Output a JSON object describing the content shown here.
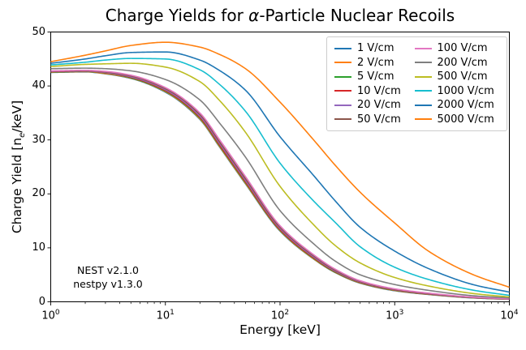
{
  "title": {
    "prefix": "Charge Yields for ",
    "alpha": "α",
    "suffix": "-Particle Nuclear Recoils"
  },
  "xlabel": "Energy [keV]",
  "ylabel": {
    "prefix": "Charge Yield [n",
    "sub": "e",
    "suffix": "/keV]"
  },
  "annotation": {
    "line1": "NEST v2.1.0",
    "line2": "nestpy v1.3.0"
  },
  "axes": {
    "xscale": "log",
    "xlim": [
      1,
      10000
    ],
    "ylim": [
      0,
      50
    ],
    "xticks": [
      {
        "base": "10",
        "exp": "0",
        "value": 1
      },
      {
        "base": "10",
        "exp": "1",
        "value": 10
      },
      {
        "base": "10",
        "exp": "2",
        "value": 100
      },
      {
        "base": "10",
        "exp": "3",
        "value": 1000
      },
      {
        "base": "10",
        "exp": "4",
        "value": 10000
      }
    ],
    "yticks": [
      {
        "label": "0",
        "value": 0
      },
      {
        "label": "10",
        "value": 10
      },
      {
        "label": "20",
        "value": 20
      },
      {
        "label": "30",
        "value": 30
      },
      {
        "label": "40",
        "value": 40
      },
      {
        "label": "50",
        "value": 50
      }
    ]
  },
  "chart_data": {
    "type": "line",
    "title": "Charge Yields for α-Particle Nuclear Recoils",
    "xlabel": "Energy [keV]",
    "ylabel": "Charge Yield [n_e/keV]",
    "xscale": "log",
    "xlim": [
      1,
      10000
    ],
    "ylim": [
      0,
      50
    ],
    "grid": false,
    "legend_position": "upper right",
    "legend_columns": 2,
    "annotations": [
      "NEST v2.1.0",
      "nestpy v1.3.0"
    ],
    "x": [
      1,
      2,
      3,
      5,
      10,
      20,
      30,
      50,
      100,
      200,
      300,
      500,
      1000,
      2000,
      5000,
      10000
    ],
    "series": [
      {
        "name": "1 V/cm",
        "color": "#1f77b4",
        "values": [
          42.5,
          42.6,
          42.25,
          41.4,
          38.85,
          33.8,
          28.55,
          21.85,
          13.1,
          7.8,
          5.45,
          3.45,
          2.05,
          1.34,
          0.7,
          0.46
        ]
      },
      {
        "name": "2 V/cm",
        "color": "#ff7f0e",
        "values": [
          42.55,
          42.65,
          42.3,
          41.45,
          38.95,
          33.9,
          28.65,
          21.95,
          13.2,
          7.85,
          5.5,
          3.5,
          2.1,
          1.37,
          0.72,
          0.47
        ]
      },
      {
        "name": "5 V/cm",
        "color": "#2ca02c",
        "values": [
          42.6,
          42.7,
          42.4,
          41.5,
          39.05,
          34.05,
          28.8,
          22.1,
          13.3,
          7.95,
          5.55,
          3.56,
          2.15,
          1.4,
          0.74,
          0.49
        ]
      },
      {
        "name": "10 V/cm",
        "color": "#d62728",
        "values": [
          42.65,
          42.75,
          42.45,
          41.6,
          39.15,
          34.2,
          28.95,
          22.25,
          13.4,
          8.05,
          5.65,
          3.62,
          2.2,
          1.43,
          0.76,
          0.5
        ]
      },
      {
        "name": "20 V/cm",
        "color": "#9467bd",
        "values": [
          42.7,
          42.8,
          42.5,
          41.7,
          39.3,
          34.4,
          29.2,
          22.5,
          13.6,
          8.2,
          5.75,
          3.7,
          2.25,
          1.47,
          0.78,
          0.51
        ]
      },
      {
        "name": "50 V/cm",
        "color": "#8c564b",
        "values": [
          42.75,
          42.85,
          42.6,
          41.85,
          39.5,
          34.7,
          29.5,
          22.8,
          13.8,
          8.4,
          5.9,
          3.8,
          2.3,
          1.52,
          0.81,
          0.53
        ]
      },
      {
        "name": "100 V/cm",
        "color": "#e377c2",
        "values": [
          42.8,
          42.9,
          42.7,
          42.0,
          39.7,
          35.0,
          29.9,
          23.2,
          14.1,
          8.6,
          6.1,
          3.9,
          2.4,
          1.6,
          0.85,
          0.55
        ]
      },
      {
        "name": "200 V/cm",
        "color": "#7f7f7f",
        "values": [
          43.2,
          43.3,
          43.2,
          42.8,
          41.2,
          37.4,
          33.0,
          26.8,
          16.9,
          10.6,
          7.6,
          5.0,
          3.2,
          2.1,
          1.1,
          0.72
        ]
      },
      {
        "name": "500 V/cm",
        "color": "#bcbd22",
        "values": [
          43.6,
          44.0,
          44.1,
          44.2,
          43.5,
          40.8,
          37.2,
          31.4,
          21.4,
          14.1,
          10.5,
          7.2,
          4.5,
          2.9,
          1.5,
          0.9
        ]
      },
      {
        "name": "1000 V/cm",
        "color": "#17becf",
        "values": [
          43.9,
          44.4,
          44.8,
          45.1,
          45.0,
          43.0,
          40.2,
          35.3,
          25.7,
          18.5,
          14.8,
          10.2,
          6.4,
          4.1,
          2.1,
          1.2
        ]
      },
      {
        "name": "2000 V/cm",
        "color": "#1f77b4",
        "values": [
          44.2,
          45.0,
          45.6,
          46.2,
          46.3,
          44.8,
          42.8,
          39.2,
          30.6,
          23.2,
          18.8,
          13.8,
          9.4,
          6.1,
          3.1,
          1.8
        ]
      },
      {
        "name": "5000 V/cm",
        "color": "#ff7f0e",
        "values": [
          44.5,
          45.7,
          46.5,
          47.5,
          48.1,
          47.2,
          45.8,
          43.2,
          37.0,
          29.8,
          25.4,
          20.3,
          14.6,
          9.3,
          4.9,
          2.7
        ]
      }
    ]
  }
}
